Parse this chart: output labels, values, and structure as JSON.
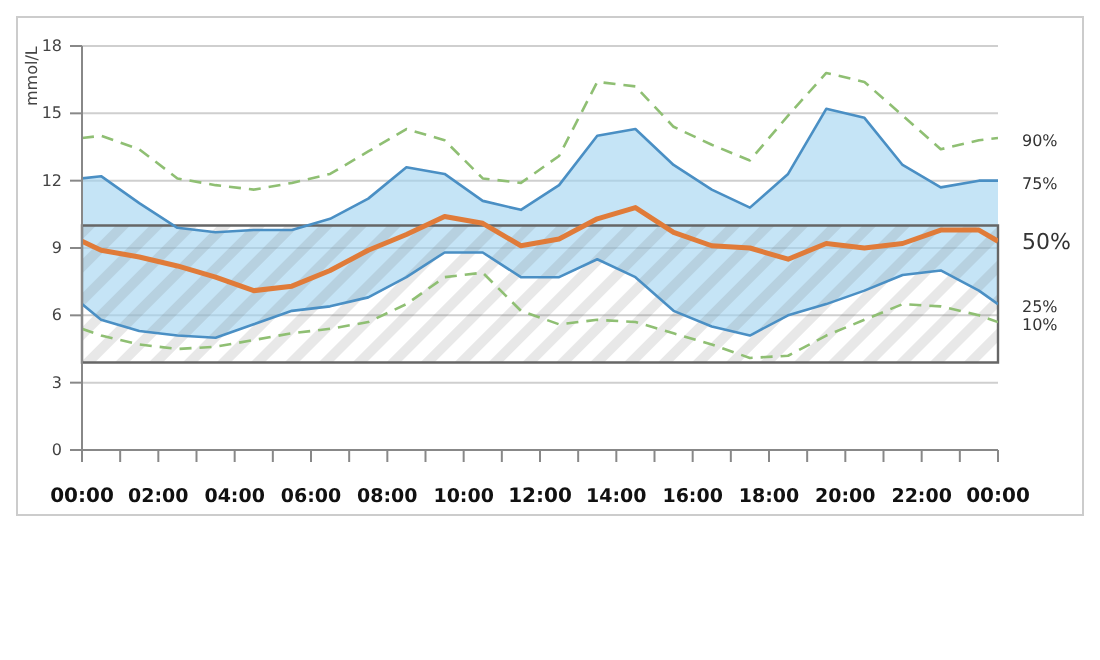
{
  "chart_data": {
    "type": "line",
    "ylabel": "mmol/L",
    "x": [
      0,
      0.5,
      1.5,
      2.5,
      3.5,
      4.5,
      5.5,
      6.5,
      7.5,
      8.5,
      9.5,
      10.5,
      11.5,
      12.5,
      13.5,
      14.5,
      15.5,
      16.5,
      17.5,
      18.5,
      19.5,
      20.5,
      21.5,
      22.5,
      23.5,
      24
    ],
    "series": [
      {
        "name": "90%",
        "color": "#8fbf73",
        "line_style": "dashed",
        "values": [
          13.9,
          14.0,
          13.4,
          12.1,
          11.8,
          11.6,
          11.9,
          12.3,
          13.3,
          14.3,
          13.8,
          12.1,
          11.9,
          13.1,
          16.4,
          16.2,
          14.4,
          13.6,
          12.9,
          14.9,
          16.8,
          16.4,
          14.9,
          13.4,
          13.8,
          13.9
        ]
      },
      {
        "name": "75%",
        "color": "#4a8fc4",
        "values": [
          12.1,
          12.2,
          11.0,
          9.9,
          9.7,
          9.8,
          9.8,
          10.3,
          11.2,
          12.6,
          12.3,
          11.1,
          10.7,
          11.8,
          14.0,
          14.3,
          12.7,
          11.6,
          10.8,
          12.3,
          15.2,
          14.8,
          12.7,
          11.7,
          12.0,
          12.0
        ]
      },
      {
        "name": "25%",
        "color": "#4a8fc4",
        "values": [
          6.5,
          5.8,
          5.3,
          5.1,
          5.0,
          5.6,
          6.2,
          6.4,
          6.8,
          7.7,
          8.8,
          8.8,
          7.7,
          7.7,
          8.5,
          7.7,
          6.2,
          5.5,
          5.1,
          6.0,
          6.5,
          7.1,
          7.8,
          8.0,
          7.1,
          6.5
        ]
      },
      {
        "name": "50%",
        "color": "#e07b39",
        "values": [
          9.3,
          8.9,
          8.6,
          8.2,
          7.7,
          7.1,
          7.3,
          8.0,
          8.9,
          9.6,
          10.4,
          10.1,
          9.1,
          9.4,
          10.3,
          10.8,
          9.7,
          9.1,
          9.0,
          8.5,
          9.2,
          9.0,
          9.2,
          9.8,
          9.8,
          9.3
        ],
        "lower": [
          6.5,
          5.8,
          5.3,
          5.1,
          5.0,
          5.6,
          6.2,
          6.4,
          6.8,
          7.7,
          8.8,
          8.8,
          7.7,
          7.7,
          8.5,
          7.7,
          6.2,
          5.5,
          5.1,
          6.0,
          6.5,
          7.1,
          7.8,
          8.0,
          7.1,
          6.5
        ],
        "upper": [
          12.1,
          12.2,
          11.0,
          9.9,
          9.7,
          9.8,
          9.8,
          10.3,
          11.2,
          12.6,
          12.3,
          11.1,
          10.7,
          11.8,
          14.0,
          14.3,
          12.7,
          11.6,
          10.8,
          12.3,
          15.2,
          14.8,
          12.7,
          11.7,
          12.0,
          12.0
        ]
      },
      {
        "name": "10%",
        "color": "#8fbf73",
        "line_style": "dashed",
        "values": [
          5.4,
          5.1,
          4.7,
          4.5,
          4.6,
          4.9,
          5.2,
          5.4,
          5.7,
          6.5,
          7.7,
          7.9,
          6.2,
          5.6,
          5.8,
          5.7,
          5.2,
          4.7,
          4.1,
          4.2,
          5.1,
          5.8,
          6.5,
          6.4,
          6.0,
          5.7
        ]
      }
    ],
    "bands": [
      {
        "axis": "y",
        "from": 3.9,
        "to": 10,
        "color": "#666666"
      }
    ],
    "xlim": [
      0,
      24
    ],
    "xticks": [
      {
        "value": 0,
        "label": "00:00"
      },
      {
        "value": 1,
        "label": null
      },
      {
        "value": 2,
        "label": "02:00"
      },
      {
        "value": 3,
        "label": null
      },
      {
        "value": 4,
        "label": "04:00"
      },
      {
        "value": 5,
        "label": null
      },
      {
        "value": 6,
        "label": "06:00"
      },
      {
        "value": 7,
        "label": null
      },
      {
        "value": 8,
        "label": "08:00"
      },
      {
        "value": 9,
        "label": null
      },
      {
        "value": 10,
        "label": "10:00"
      },
      {
        "value": 11,
        "label": null
      },
      {
        "value": 12,
        "label": "12:00"
      },
      {
        "value": 13,
        "label": null
      },
      {
        "value": 14,
        "label": "14:00"
      },
      {
        "value": 15,
        "label": null
      },
      {
        "value": 16,
        "label": "16:00"
      },
      {
        "value": 17,
        "label": null
      },
      {
        "value": 18,
        "label": "18:00"
      },
      {
        "value": 19,
        "label": null
      },
      {
        "value": 20,
        "label": "20:00"
      },
      {
        "value": 21,
        "label": null
      },
      {
        "value": 22,
        "label": "22:00"
      },
      {
        "value": 23,
        "label": null
      },
      {
        "value": 24,
        "label": "00:00"
      }
    ],
    "ylim": [
      0,
      18
    ],
    "yticks": [
      0,
      3,
      6,
      9,
      12,
      15,
      18
    ],
    "grid": "y",
    "legend": false,
    "marker": "none"
  }
}
